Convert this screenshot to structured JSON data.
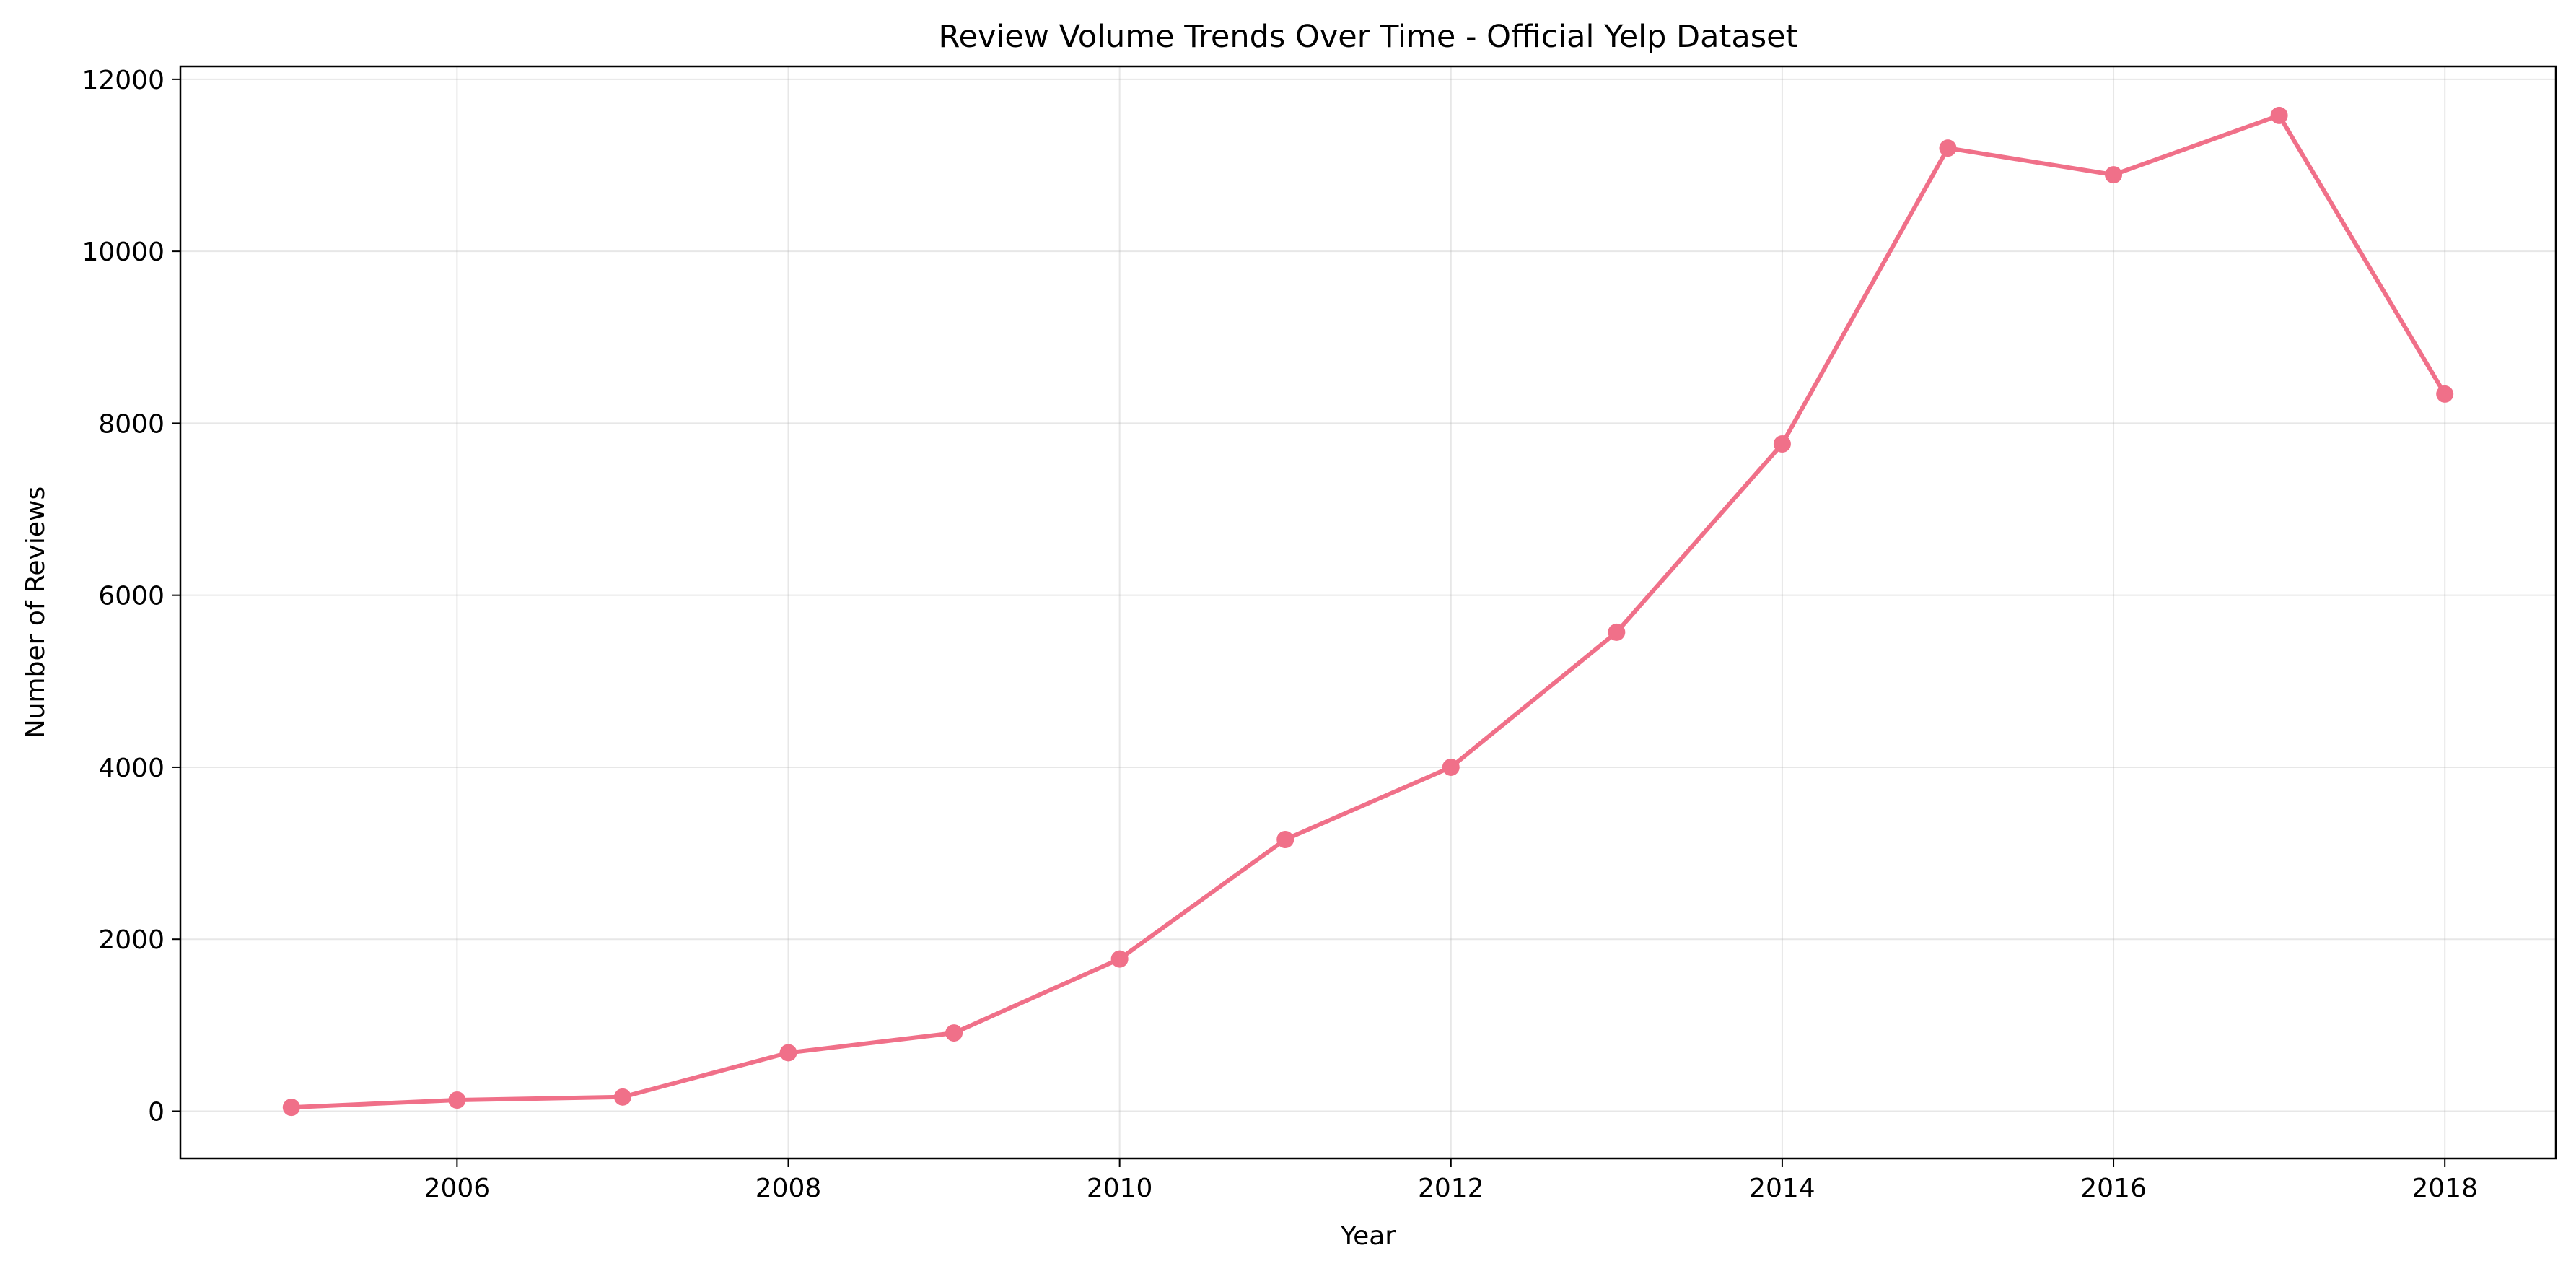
{
  "chart_data": {
    "type": "line",
    "title": "Review Volume Trends Over Time - Official Yelp Dataset",
    "xlabel": "Year",
    "ylabel": "Number of Reviews",
    "xlim": [
      2004.33,
      2018.67
    ],
    "ylim": [
      -550,
      12150
    ],
    "xticks": [
      2006,
      2008,
      2010,
      2012,
      2014,
      2016,
      2018
    ],
    "yticks": [
      0,
      2000,
      4000,
      6000,
      8000,
      10000,
      12000
    ],
    "grid": true,
    "legend": "none",
    "series": [
      {
        "color": "#f07089",
        "marker": "circle",
        "x": [
          2005,
          2006,
          2007,
          2008,
          2009,
          2010,
          2011,
          2012,
          2013,
          2014,
          2015,
          2016,
          2017,
          2018
        ],
        "values": [
          45,
          130,
          165,
          680,
          910,
          1770,
          3160,
          4000,
          5570,
          7760,
          11200,
          10890,
          11580,
          8340
        ]
      }
    ]
  }
}
